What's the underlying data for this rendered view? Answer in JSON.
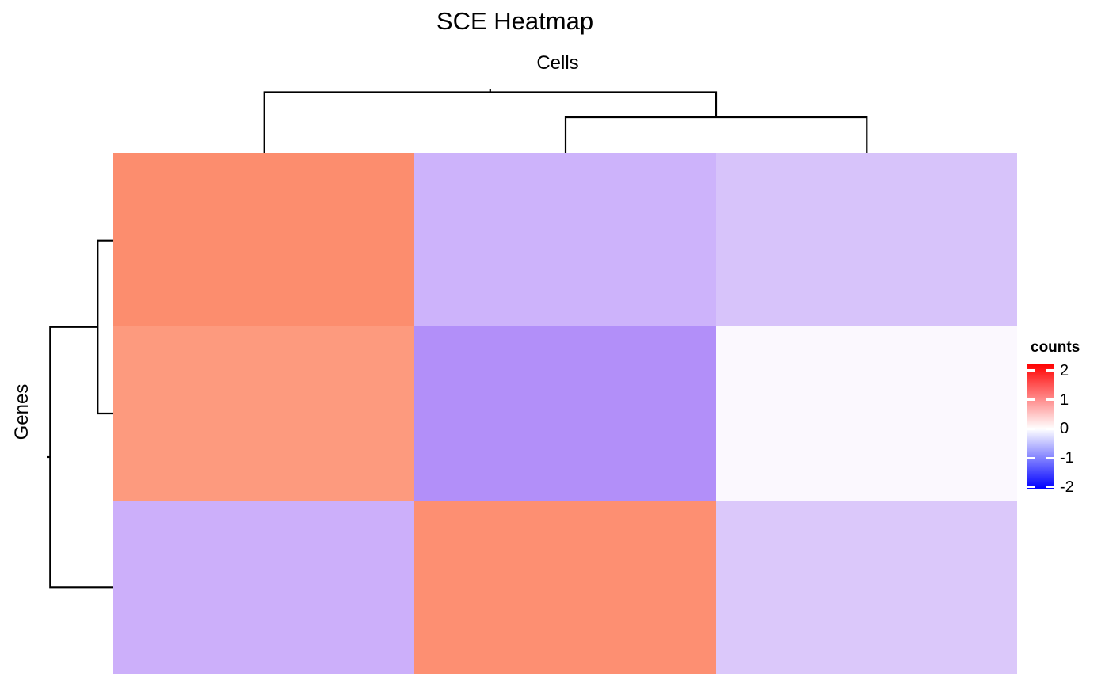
{
  "title": "SCE Heatmap",
  "column_axis_title": "Cells",
  "row_axis_title": "Genes",
  "legend": {
    "title": "counts",
    "tick_labels": [
      "2",
      "1",
      "0",
      "-1",
      "-2"
    ],
    "tick_values": [
      2,
      1,
      0,
      -1,
      -2
    ],
    "bar_top_value": 2.24,
    "bar_bottom_value": -2.06,
    "high_color": "#FF0000",
    "mid_color": "#FFFFFF",
    "low_color": "#0000FF"
  },
  "chart_data": {
    "type": "heatmap",
    "title": "SCE Heatmap",
    "xlabel": "Cells",
    "ylabel": "Genes",
    "n_rows": 3,
    "n_cols": 3,
    "legend_title": "counts",
    "color_scale": {
      "low": "#0000FF",
      "mid": "#FFFFFF",
      "high": "#FF0000",
      "domain": [
        -2.2,
        0,
        2.2
      ]
    },
    "values_estimated": [
      [
        1.1,
        -0.6,
        -0.45
      ],
      [
        0.95,
        -0.85,
        0.0
      ],
      [
        -0.6,
        1.05,
        -0.4
      ]
    ],
    "cell_colors": [
      [
        "#FC8D6E",
        "#CDB3FB",
        "#D7C3FA"
      ],
      [
        "#FD9A7E",
        "#B28FF9",
        "#FBF8FE"
      ],
      [
        "#CCAFFA",
        "#FD8F72",
        "#DBC8FA"
      ]
    ],
    "clustering": {
      "rows": "rows 1 and 2 merge first, then join with row 3",
      "columns": "columns 2 and 3 merge first, then join with column 1"
    },
    "row_dendrogram_side": "left",
    "column_dendrogram_side": "top",
    "grid": false,
    "legend_position": "right"
  }
}
